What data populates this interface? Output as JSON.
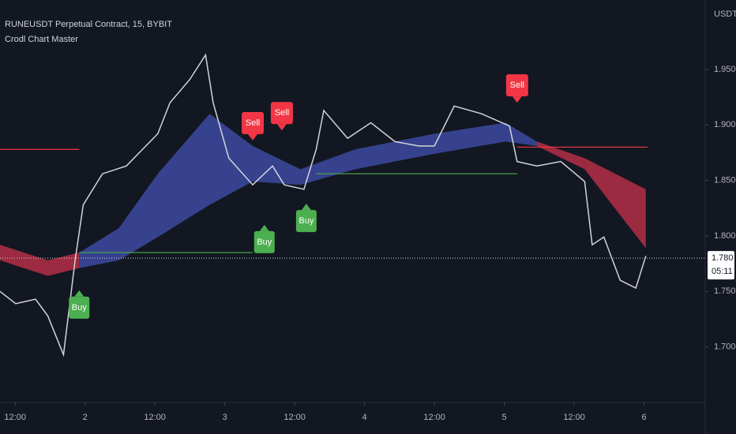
{
  "chart_data": {
    "type": "line",
    "title": "RUNEUSDT Perpetual Contract, 15, BYBIT",
    "subtitle": "Crodl Chart Master",
    "y_axis_label": "USDT",
    "xlim": [
      9.4,
      130.5
    ],
    "ylim": [
      1.65,
      2.0125
    ],
    "xticks": [
      {
        "value": 12,
        "label": "12:00"
      },
      {
        "value": 24,
        "label": "2"
      },
      {
        "value": 36,
        "label": "12:00"
      },
      {
        "value": 48,
        "label": "3"
      },
      {
        "value": 60,
        "label": "12:00"
      },
      {
        "value": 72,
        "label": "4"
      },
      {
        "value": 84,
        "label": "12:00"
      },
      {
        "value": 96,
        "label": "5"
      },
      {
        "value": 108,
        "label": "12:00"
      },
      {
        "value": 120,
        "label": "6"
      }
    ],
    "yticks": [
      {
        "value": 1.7,
        "label": "1.700"
      },
      {
        "value": 1.75,
        "label": "1.750"
      },
      {
        "value": 1.8,
        "label": "1.800"
      },
      {
        "value": 1.85,
        "label": "1.850"
      },
      {
        "value": 1.9,
        "label": "1.900"
      },
      {
        "value": 1.95,
        "label": "1.950"
      }
    ],
    "x": [
      9.4,
      12.1,
      15.5,
      17.6,
      20.3,
      22.3,
      23.7,
      27.0,
      31.1,
      36.5,
      38.6,
      42.0,
      44.7,
      46.0,
      48.7,
      52.8,
      56.2,
      58.2,
      61.6,
      63.7,
      65.0,
      69.1,
      73.1,
      77.2,
      81.3,
      84.0,
      87.4,
      92.1,
      96.9,
      98.2,
      101.6,
      105.7,
      109.8,
      111.1,
      113.1,
      115.9,
      118.6,
      120.3
    ],
    "series": [
      {
        "color": "#d1d4dc",
        "values": [
          1.75,
          1.739,
          1.743,
          1.728,
          1.693,
          1.778,
          1.828,
          1.856,
          1.863,
          1.892,
          1.92,
          1.941,
          1.963,
          1.92,
          1.87,
          1.846,
          1.863,
          1.846,
          1.842,
          1.878,
          1.913,
          1.888,
          1.902,
          1.885,
          1.881,
          1.881,
          1.917,
          1.91,
          1.899,
          1.867,
          1.863,
          1.867,
          1.849,
          1.792,
          1.799,
          1.76,
          1.753,
          1.782
        ]
      }
    ],
    "ribbon": {
      "x": [
        9.4,
        17.6,
        23.0,
        29.8,
        36.5,
        45.4,
        52.8,
        61.0,
        70.4,
        84.0,
        96.2,
        101.6,
        109.8,
        120.3
      ],
      "upper": [
        1.792,
        1.778,
        1.785,
        1.807,
        1.856,
        1.91,
        1.881,
        1.86,
        1.878,
        1.892,
        1.902,
        1.885,
        1.87,
        1.842
      ],
      "lower": [
        1.778,
        1.764,
        1.771,
        1.778,
        1.799,
        1.828,
        1.849,
        1.846,
        1.86,
        1.874,
        1.885,
        1.881,
        1.86,
        1.789
      ],
      "segment_colors": [
        "#b52e45",
        "#b52e45",
        "#3d4aa0",
        "#3d4aa0",
        "#3d4aa0",
        "#3d4aa0",
        "#3d4aa0",
        "#3d4aa0",
        "#3d4aa0",
        "#3d4aa0",
        "#3d4aa0",
        "#b52e45",
        "#b52e45"
      ]
    },
    "levels": [
      {
        "x": [
          9.4,
          23.0
        ],
        "value": 1.878,
        "color": "#f23645"
      },
      {
        "x": [
          98.2,
          120.6
        ],
        "value": 1.88,
        "color": "#f23645"
      },
      {
        "x": [
          23.0,
          52.8
        ],
        "value": 1.785,
        "color": "#4caf50"
      },
      {
        "x": [
          63.7,
          98.2
        ],
        "value": 1.856,
        "color": "#4caf50"
      }
    ],
    "signals": [
      {
        "label": "Buy",
        "x": 23.0,
        "y": 1.751,
        "color": "#4caf50"
      },
      {
        "label": "Sell",
        "x": 52.8,
        "y": 1.886,
        "color": "#f23645"
      },
      {
        "label": "Buy",
        "x": 54.8,
        "y": 1.81,
        "color": "#4caf50"
      },
      {
        "label": "Sell",
        "x": 57.8,
        "y": 1.895,
        "color": "#f23645"
      },
      {
        "label": "Buy",
        "x": 62.0,
        "y": 1.829,
        "color": "#4caf50"
      },
      {
        "label": "Sell",
        "x": 98.2,
        "y": 1.92,
        "color": "#f23645"
      }
    ],
    "last_price": {
      "value": 1.78,
      "label": "1.780",
      "countdown": "05:11"
    }
  }
}
